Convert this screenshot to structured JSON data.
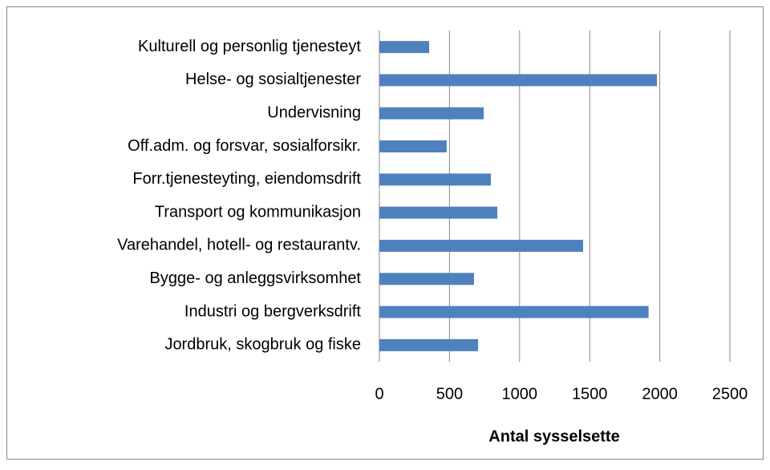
{
  "chart_data": {
    "type": "bar",
    "orientation": "horizontal",
    "x_label": "Antal sysselsette",
    "categories": [
      "Kulturell og personlig tjenesteyt",
      "Helse- og sosialtjenester",
      "Undervisning",
      "Off.adm. og forsvar, sosialforsikr.",
      "Forr.tjenesteyting, eiendomsdrift",
      "Transport og kommunikasjon",
      "Varehandel, hotell- og restaurantv.",
      "Bygge- og anleggsvirksomhet",
      "Industri og bergverksdrift",
      "Jordbruk, skogbruk og fiske"
    ],
    "values": [
      355,
      1980,
      744,
      480,
      795,
      841,
      1453,
      675,
      1920,
      704
    ],
    "color": "#4f81bd",
    "xlim": [
      0,
      2500
    ],
    "xticks": [
      0,
      500,
      1000,
      1500,
      2000,
      2500
    ],
    "grid": true
  }
}
